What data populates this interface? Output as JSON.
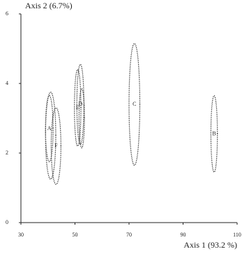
{
  "chart_data": {
    "type": "ellipse",
    "xlabel": "Axis 1 (93.2 %)",
    "ylabel": "Axis 2 (6.7%)",
    "xlim": [
      30,
      110
    ],
    "xticks": [
      30,
      50,
      70,
      90,
      110
    ],
    "ylim": [
      0,
      6
    ],
    "yticks": [
      0,
      2,
      4,
      6
    ],
    "color": "#333333",
    "ellipses": [
      {
        "x": 41,
        "y": 2.5,
        "x_radius": 1.9,
        "y_radius": 1.25
      },
      {
        "label": "A",
        "x": 40.5,
        "y": 2.7,
        "x_radius": 1.4,
        "y_radius": 0.95
      },
      {
        "label": "F",
        "x": 43,
        "y": 2.2,
        "x_radius": 1.8,
        "y_radius": 1.1
      },
      {
        "label": "D",
        "x": 52,
        "y": 3.4,
        "x_radius": 1.3,
        "y_radius": 1.15
      },
      {
        "label": "E",
        "x": 51,
        "y": 3.3,
        "x_radius": 1.2,
        "y_radius": 1.1
      },
      {
        "x": 52.5,
        "y": 3.0,
        "x_radius": 1.0,
        "y_radius": 0.85
      },
      {
        "label": "C",
        "x": 72,
        "y": 3.4,
        "x_radius": 2,
        "y_radius": 1.75
      },
      {
        "label": "B",
        "x": 101.5,
        "y": 2.55,
        "x_radius": 1.2,
        "y_radius": 1.1
      }
    ]
  }
}
